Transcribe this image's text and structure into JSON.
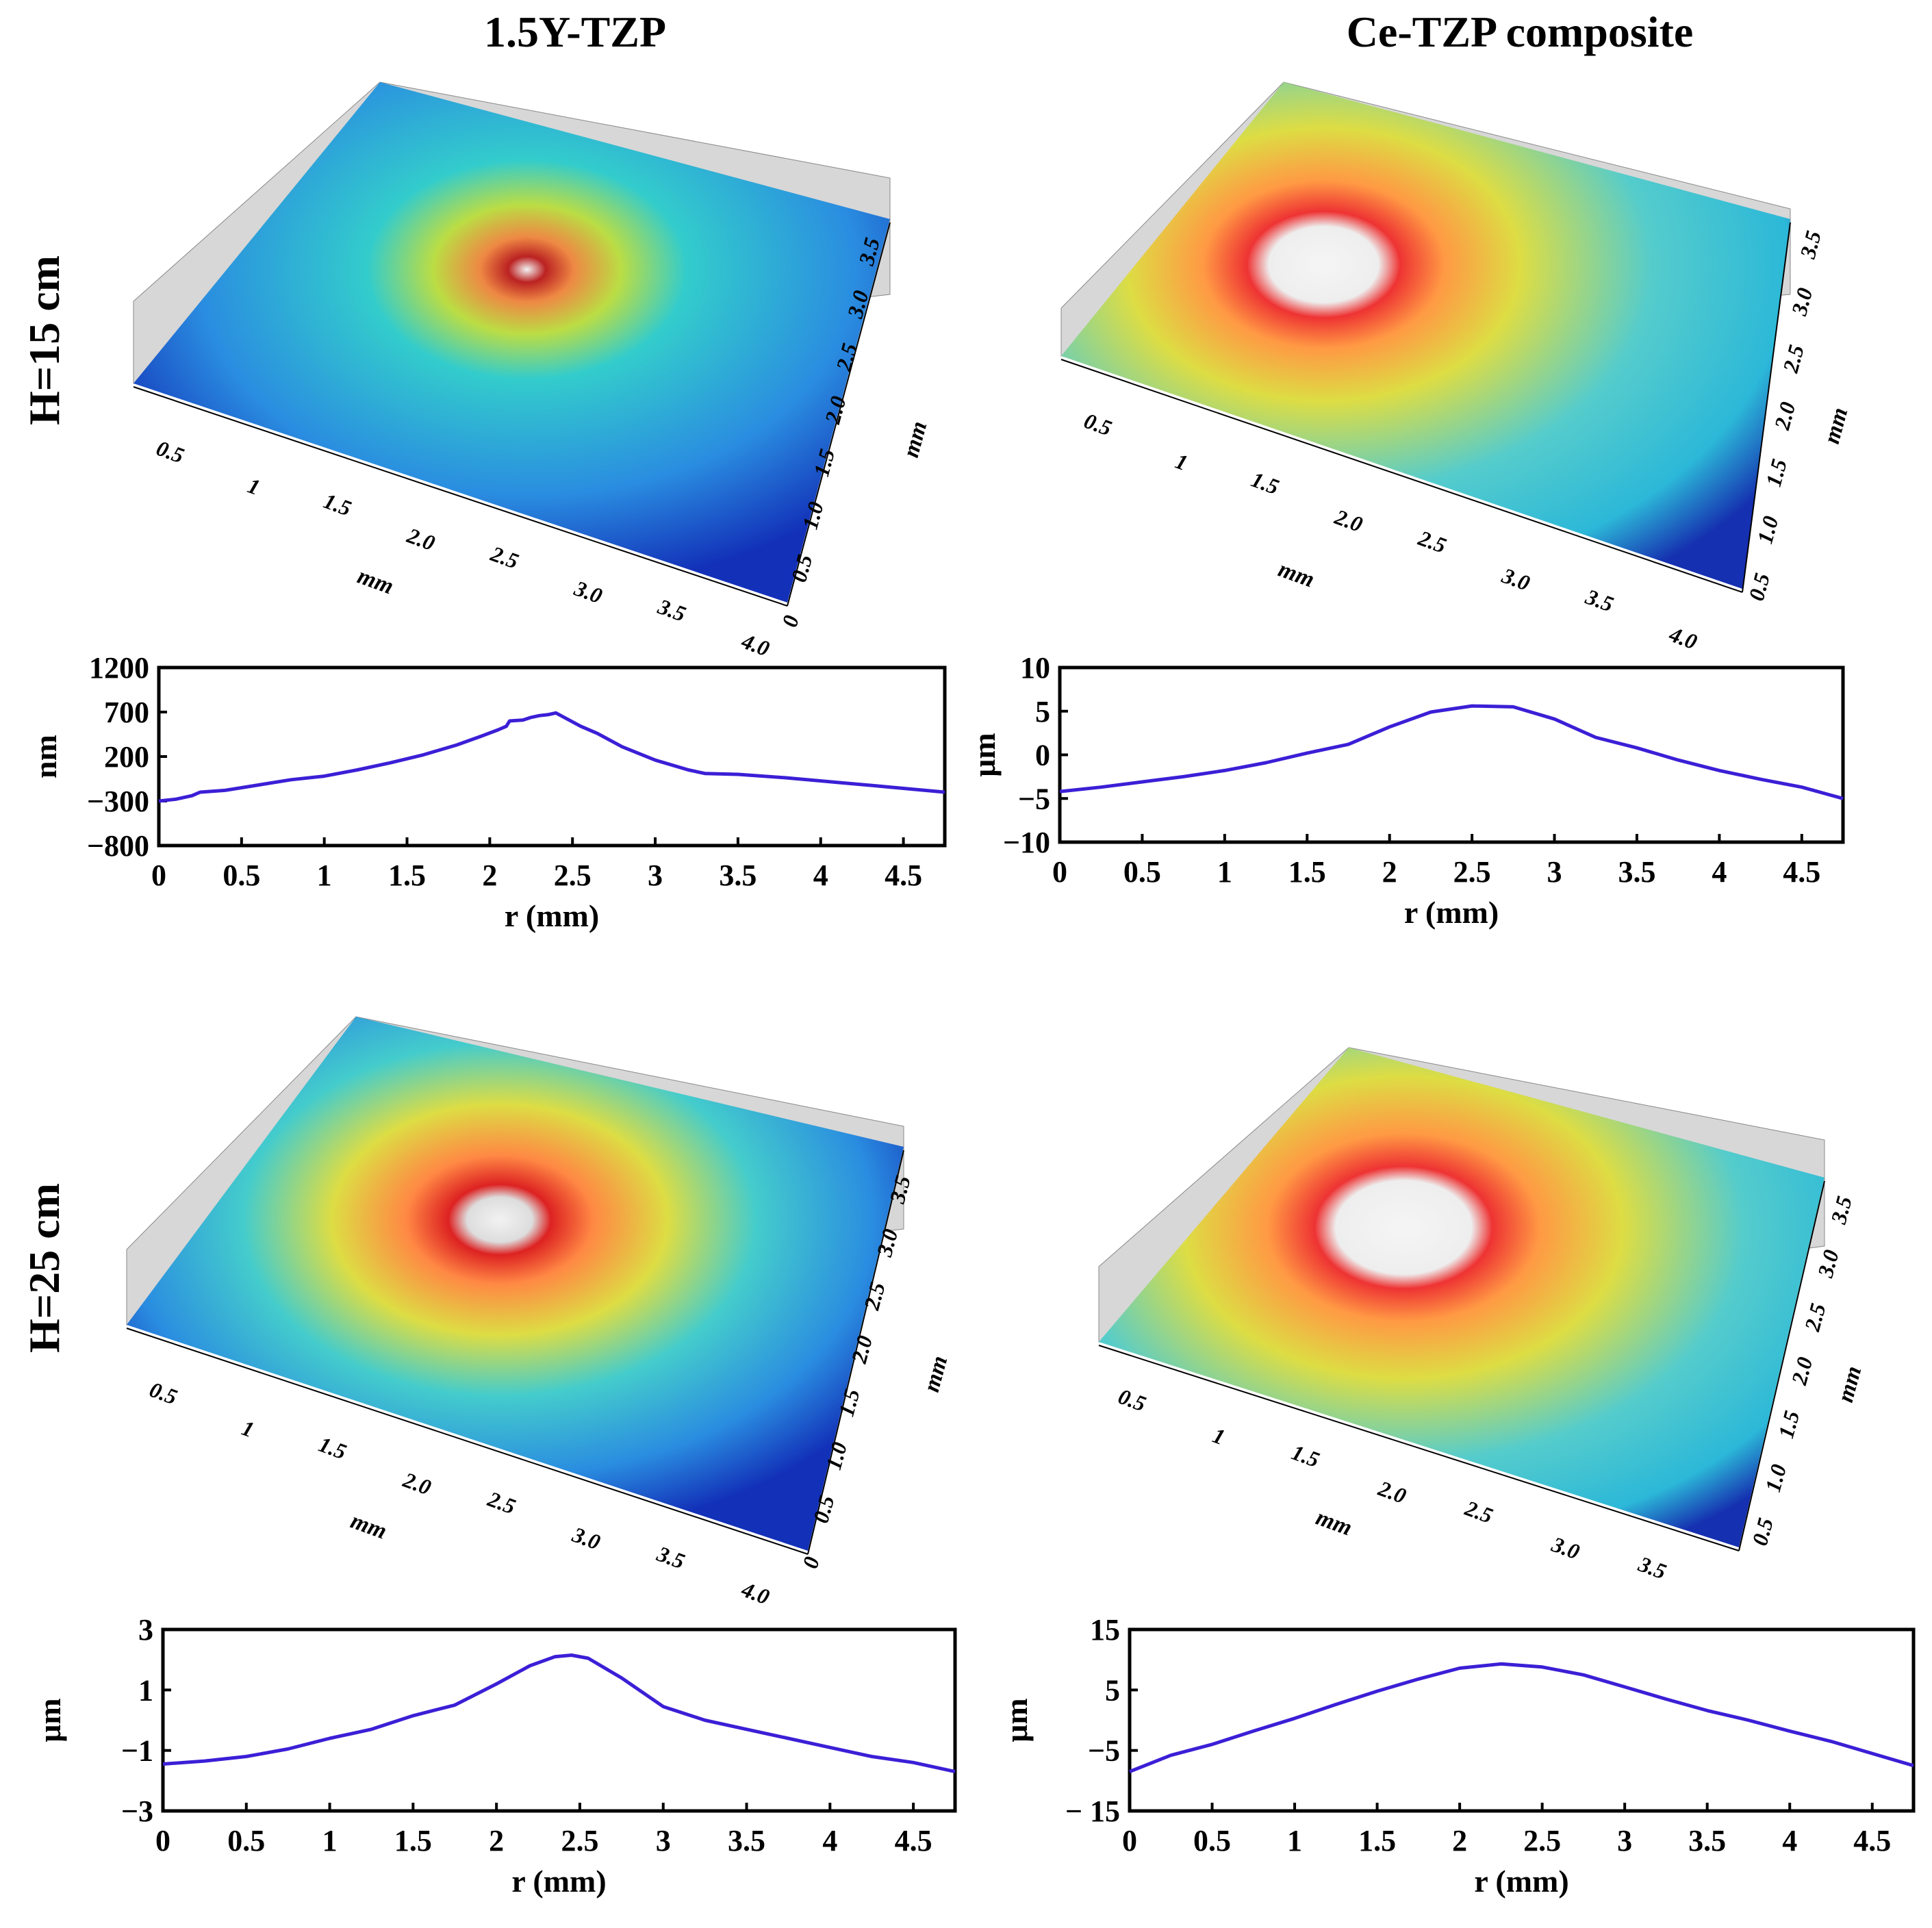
{
  "columns": [
    "1.5Y-TZP",
    "Ce-TZP composite"
  ],
  "rows": [
    "H=15 cm",
    "H=25 cm"
  ],
  "surface_axis_unit": "mm",
  "surfaces": [
    {
      "x_ticks": [
        "0.5",
        "1",
        "1.5",
        "2.0",
        "2.5",
        "3.0",
        "3.5",
        "4.0"
      ],
      "y_ticks": [
        "0",
        "0.5",
        "1.0",
        "1.5",
        "2.0",
        "2.5",
        "3.0",
        "3.5"
      ]
    },
    {
      "x_ticks": [
        "0.5",
        "1",
        "1.5",
        "2.0",
        "2.5",
        "3.0",
        "3.5",
        "4.0"
      ],
      "y_ticks": [
        "0.5",
        "1.0",
        "1.5",
        "2.0",
        "2.5",
        "3.0",
        "3.5"
      ]
    },
    {
      "x_ticks": [
        "0.5",
        "1",
        "1.5",
        "2.0",
        "2.5",
        "3.0",
        "3.5",
        "4.0"
      ],
      "y_ticks": [
        "0",
        "0.5",
        "1.0",
        "1.5",
        "2.0",
        "2.5",
        "3.0",
        "3.5"
      ]
    },
    {
      "x_ticks": [
        "0.5",
        "1",
        "1.5",
        "2.0",
        "2.5",
        "3.0",
        "3.5"
      ],
      "y_ticks": [
        "0.5",
        "1.0",
        "1.5",
        "2.0",
        "2.5",
        "3.0",
        "3.5"
      ]
    }
  ],
  "colors": {
    "line": "#3b1fd6",
    "frame": "#000000"
  },
  "chart_data": [
    {
      "type": "line",
      "title": "1.5Y-TZP, H=15 cm",
      "xlabel": "r (mm)",
      "ylabel": "nm",
      "xlim": [
        0,
        4.75
      ],
      "ylim": [
        -800,
        1200
      ],
      "x_ticks": [
        0,
        0.5,
        1,
        1.5,
        2,
        2.5,
        3,
        3.5,
        4,
        4.5
      ],
      "x_tick_labels": [
        "0",
        "0.5",
        "1",
        "1.5",
        "2",
        "2.5",
        "3",
        "3.5",
        "4",
        "4.5"
      ],
      "y_ticks": [
        1200,
        700,
        200,
        -300,
        -800
      ],
      "y_tick_labels": [
        "1200",
        "700",
        "200",
        "−300",
        "−800"
      ],
      "series": [
        {
          "name": "profile",
          "x": [
            0,
            0.1,
            0.2,
            0.25,
            0.4,
            0.6,
            0.8,
            1.0,
            1.2,
            1.4,
            1.6,
            1.8,
            1.95,
            2.05,
            2.1,
            2.12,
            2.2,
            2.25,
            2.3,
            2.35,
            2.4,
            2.45,
            2.55,
            2.65,
            2.8,
            3.0,
            3.2,
            3.3,
            3.5,
            3.8,
            4.1,
            4.4,
            4.75
          ],
          "y": [
            -300,
            -280,
            -240,
            -200,
            -180,
            -120,
            -60,
            -20,
            50,
            130,
            220,
            330,
            430,
            500,
            540,
            600,
            610,
            640,
            660,
            670,
            690,
            640,
            540,
            460,
            310,
            160,
            50,
            10,
            0,
            -40,
            -90,
            -140,
            -200
          ]
        }
      ]
    },
    {
      "type": "line",
      "title": "Ce-TZP composite, H=15 cm",
      "xlabel": "r (mm)",
      "ylabel": "μm",
      "xlim": [
        0,
        4.75
      ],
      "ylim": [
        -10,
        10
      ],
      "x_ticks": [
        0,
        0.5,
        1,
        1.5,
        2,
        2.5,
        3,
        3.5,
        4,
        4.5
      ],
      "x_tick_labels": [
        "0",
        "0.5",
        "1",
        "1.5",
        "2",
        "2.5",
        "3",
        "3.5",
        "4",
        "4.5"
      ],
      "y_ticks": [
        10,
        5,
        0,
        -5,
        -10
      ],
      "y_tick_labels": [
        "10",
        "5",
        "0",
        "−5",
        "−10"
      ],
      "series": [
        {
          "name": "profile",
          "x": [
            0,
            0.25,
            0.5,
            0.75,
            1.0,
            1.25,
            1.5,
            1.75,
            2.0,
            2.25,
            2.5,
            2.75,
            3.0,
            3.25,
            3.5,
            3.75,
            4.0,
            4.25,
            4.5,
            4.75
          ],
          "y": [
            -4.2,
            -3.7,
            -3.1,
            -2.5,
            -1.8,
            -0.9,
            0.2,
            1.2,
            3.2,
            4.9,
            5.6,
            5.5,
            4.1,
            2.0,
            0.8,
            -0.6,
            -1.8,
            -2.8,
            -3.7,
            -5.0
          ]
        }
      ]
    },
    {
      "type": "line",
      "title": "1.5Y-TZP, H=25 cm",
      "xlabel": "r (mm)",
      "ylabel": "μm",
      "xlim": [
        0,
        4.75
      ],
      "ylim": [
        -3,
        3
      ],
      "x_ticks": [
        0,
        0.5,
        1,
        1.5,
        2,
        2.5,
        3,
        3.5,
        4,
        4.5
      ],
      "x_tick_labels": [
        "0",
        "0.5",
        "1",
        "1.5",
        "2",
        "2.5",
        "3",
        "3.5",
        "4",
        "4.5"
      ],
      "y_ticks": [
        3,
        1,
        -1,
        -3
      ],
      "y_tick_labels": [
        "3",
        "1",
        "−1",
        "−3"
      ],
      "series": [
        {
          "name": "profile",
          "x": [
            0,
            0.25,
            0.5,
            0.75,
            1.0,
            1.25,
            1.5,
            1.75,
            2.0,
            2.2,
            2.35,
            2.45,
            2.55,
            2.75,
            3.0,
            3.25,
            3.5,
            3.75,
            4.0,
            4.25,
            4.5,
            4.75
          ],
          "y": [
            -1.45,
            -1.35,
            -1.2,
            -0.95,
            -0.6,
            -0.3,
            0.15,
            0.5,
            1.2,
            1.8,
            2.1,
            2.15,
            2.05,
            1.4,
            0.45,
            0.0,
            -0.3,
            -0.6,
            -0.9,
            -1.2,
            -1.4,
            -1.7
          ]
        }
      ]
    },
    {
      "type": "line",
      "title": "Ce-TZP composite, H=25 cm",
      "xlabel": "r (mm)",
      "ylabel": "μm",
      "xlim": [
        0,
        4.75
      ],
      "ylim": [
        -15,
        15
      ],
      "x_ticks": [
        0,
        0.5,
        1,
        1.5,
        2,
        2.5,
        3,
        3.5,
        4,
        4.5
      ],
      "x_tick_labels": [
        "0",
        "0.5",
        "1",
        "1.5",
        "2",
        "2.5",
        "3",
        "3.5",
        "4",
        "4.5"
      ],
      "y_ticks": [
        15,
        5,
        -5,
        -15
      ],
      "y_tick_labels": [
        "15",
        "5",
        "−5",
        "− 15"
      ],
      "series": [
        {
          "name": "profile",
          "x": [
            0,
            0.25,
            0.5,
            0.75,
            1.0,
            1.25,
            1.5,
            1.75,
            2.0,
            2.25,
            2.5,
            2.75,
            3.0,
            3.25,
            3.5,
            3.75,
            4.0,
            4.25,
            4.5,
            4.75
          ],
          "y": [
            -8.5,
            -5.8,
            -4.0,
            -1.8,
            0.3,
            2.6,
            4.8,
            6.8,
            8.6,
            9.3,
            8.8,
            7.5,
            5.5,
            3.5,
            1.6,
            0.0,
            -1.8,
            -3.5,
            -5.5,
            -7.5
          ]
        }
      ]
    }
  ]
}
